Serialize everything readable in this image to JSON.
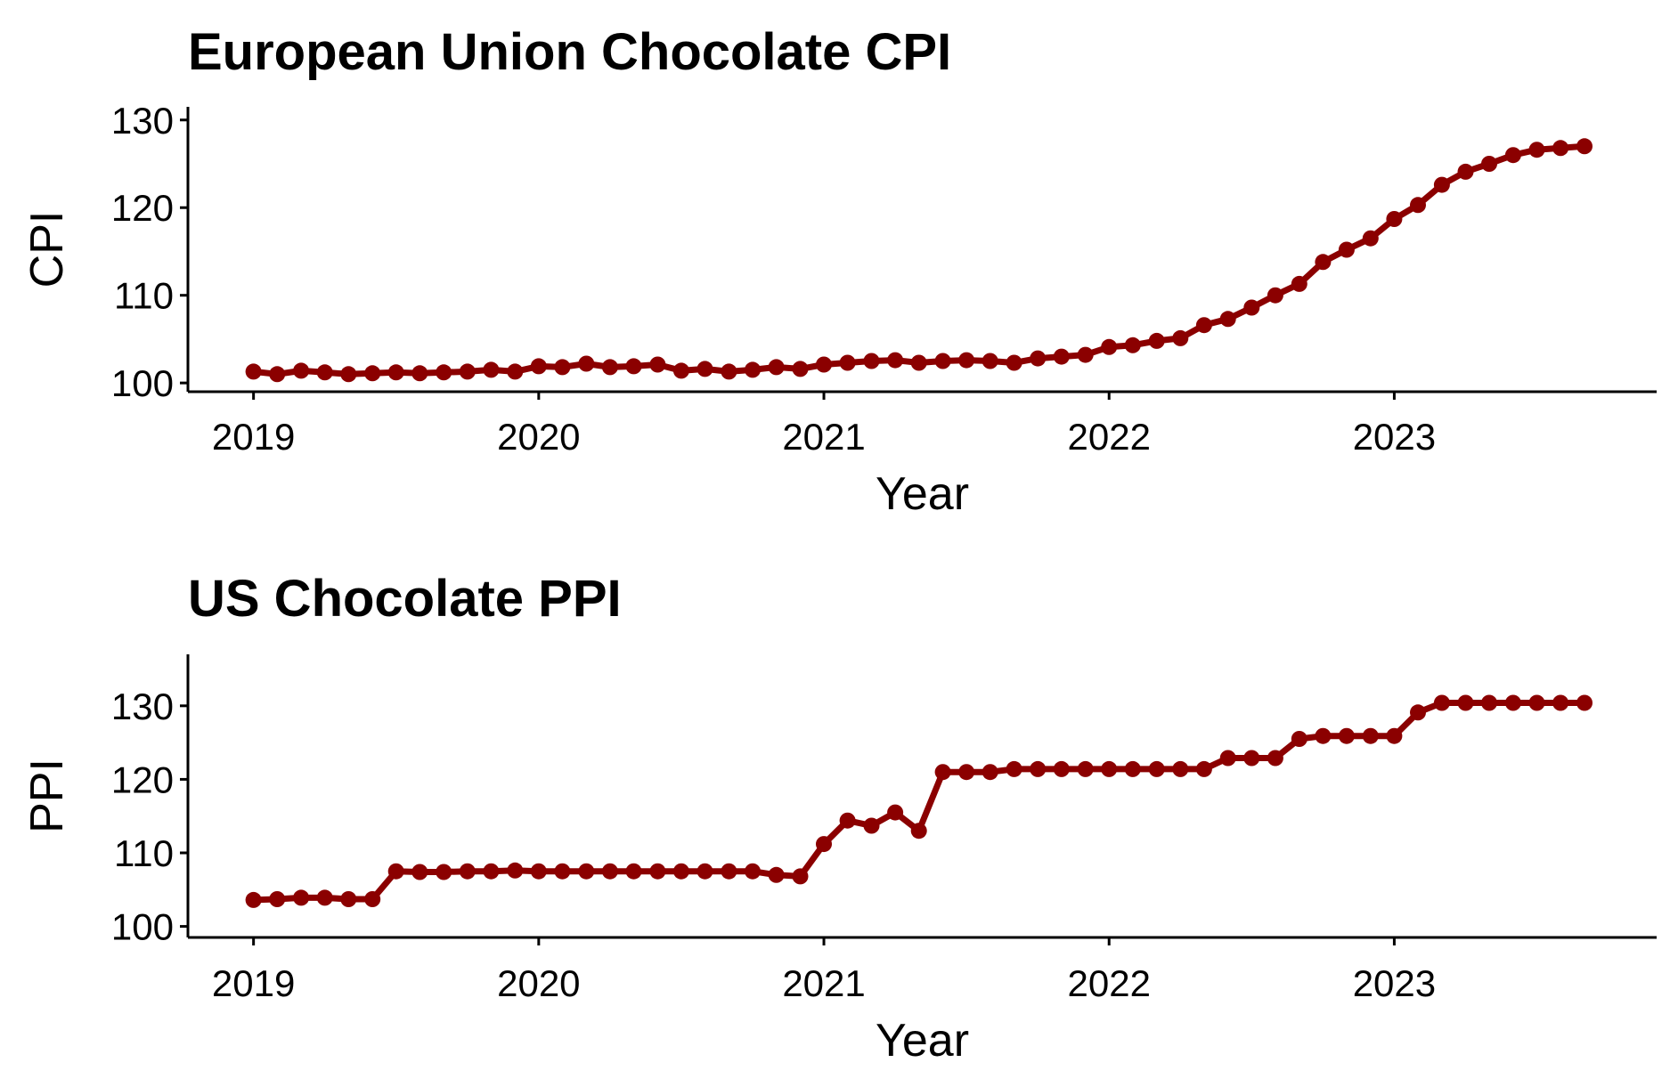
{
  "chart_data": [
    {
      "type": "line",
      "title": "European Union Chocolate CPI",
      "xlabel": "Year",
      "ylabel": "CPI",
      "xlim": [
        2018.77,
        2023.92
      ],
      "ylim": [
        99.0,
        131.5
      ],
      "xticks": [
        2019,
        2020,
        2021,
        2022,
        2023
      ],
      "xtick_labels": [
        "2019",
        "2020",
        "2021",
        "2022",
        "2023"
      ],
      "yticks": [
        100,
        110,
        120,
        130
      ],
      "ytick_labels": [
        "100",
        "110",
        "120",
        "130"
      ],
      "grid": false,
      "series": [
        {
          "color": "#8b0000",
          "x": [
            2019.0,
            2019.083,
            2019.167,
            2019.25,
            2019.333,
            2019.417,
            2019.5,
            2019.583,
            2019.667,
            2019.75,
            2019.833,
            2019.917,
            2020.0,
            2020.083,
            2020.167,
            2020.25,
            2020.333,
            2020.417,
            2020.5,
            2020.583,
            2020.667,
            2020.75,
            2020.833,
            2020.917,
            2021.0,
            2021.083,
            2021.167,
            2021.25,
            2021.333,
            2021.417,
            2021.5,
            2021.583,
            2021.667,
            2021.75,
            2021.833,
            2021.917,
            2022.0,
            2022.083,
            2022.167,
            2022.25,
            2022.333,
            2022.417,
            2022.5,
            2022.583,
            2022.667,
            2022.75,
            2022.833,
            2022.917,
            2023.0,
            2023.083,
            2023.167,
            2023.25,
            2023.333,
            2023.417,
            2023.5,
            2023.583,
            2023.667
          ],
          "y": [
            101.3,
            101.0,
            101.4,
            101.2,
            101.0,
            101.1,
            101.2,
            101.1,
            101.2,
            101.3,
            101.5,
            101.3,
            101.9,
            101.8,
            102.2,
            101.8,
            101.9,
            102.1,
            101.4,
            101.6,
            101.3,
            101.5,
            101.8,
            101.6,
            102.1,
            102.3,
            102.5,
            102.6,
            102.3,
            102.5,
            102.6,
            102.5,
            102.3,
            102.8,
            103.0,
            103.2,
            104.1,
            104.3,
            104.8,
            105.1,
            106.6,
            107.3,
            108.6,
            110.0,
            111.3,
            113.8,
            115.2,
            116.5,
            118.7,
            120.3,
            122.6,
            124.1,
            125.0,
            126.0,
            126.6,
            126.8,
            127.0
          ]
        }
      ]
    },
    {
      "type": "line",
      "title": "US Chocolate PPI",
      "xlabel": "Year",
      "ylabel": "PPI",
      "xlim": [
        2018.77,
        2023.92
      ],
      "ylim": [
        98.5,
        137.0
      ],
      "xticks": [
        2019,
        2020,
        2021,
        2022,
        2023
      ],
      "xtick_labels": [
        "2019",
        "2020",
        "2021",
        "2022",
        "2023"
      ],
      "yticks": [
        100,
        110,
        120,
        130
      ],
      "ytick_labels": [
        "100",
        "110",
        "120",
        "130"
      ],
      "grid": false,
      "series": [
        {
          "color": "#8b0000",
          "x": [
            2019.0,
            2019.083,
            2019.167,
            2019.25,
            2019.333,
            2019.417,
            2019.5,
            2019.583,
            2019.667,
            2019.75,
            2019.833,
            2019.917,
            2020.0,
            2020.083,
            2020.167,
            2020.25,
            2020.333,
            2020.417,
            2020.5,
            2020.583,
            2020.667,
            2020.75,
            2020.833,
            2020.917,
            2021.0,
            2021.083,
            2021.167,
            2021.25,
            2021.333,
            2021.417,
            2021.5,
            2021.583,
            2021.667,
            2021.75,
            2021.833,
            2021.917,
            2022.0,
            2022.083,
            2022.167,
            2022.25,
            2022.333,
            2022.417,
            2022.5,
            2022.583,
            2022.667,
            2022.75,
            2022.833,
            2022.917,
            2023.0,
            2023.083,
            2023.167,
            2023.25,
            2023.333,
            2023.417,
            2023.5,
            2023.583,
            2023.667
          ],
          "y": [
            103.6,
            103.7,
            103.9,
            103.9,
            103.7,
            103.7,
            107.5,
            107.4,
            107.4,
            107.5,
            107.5,
            107.6,
            107.5,
            107.5,
            107.5,
            107.5,
            107.5,
            107.5,
            107.5,
            107.5,
            107.5,
            107.5,
            107.0,
            106.8,
            111.2,
            114.4,
            113.7,
            115.5,
            113.0,
            121.0,
            121.0,
            121.0,
            121.4,
            121.4,
            121.4,
            121.4,
            121.4,
            121.4,
            121.4,
            121.4,
            121.4,
            122.9,
            122.9,
            122.9,
            125.5,
            125.9,
            125.9,
            125.9,
            125.9,
            129.1,
            130.4,
            130.4,
            130.4,
            130.4,
            130.4,
            130.4,
            130.4
          ]
        }
      ]
    }
  ]
}
